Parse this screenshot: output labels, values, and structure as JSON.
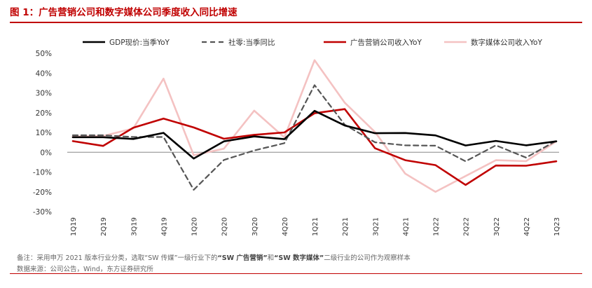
{
  "figure": {
    "title": "图 1：广告营销公司和数字媒体公司季度收入同比增速"
  },
  "chart_data": {
    "type": "line",
    "title": "图 1：广告营销公司和数字媒体公司季度收入同比增速",
    "xlabel": "",
    "ylabel": "",
    "ylim": [
      -30,
      50
    ],
    "ytick_step": 10,
    "ytick_suffix": "%",
    "grid": false,
    "legend_position": "top",
    "categories": [
      "1Q19",
      "2Q19",
      "3Q19",
      "4Q19",
      "1Q20",
      "2Q20",
      "3Q20",
      "4Q20",
      "1Q21",
      "2Q21",
      "3Q21",
      "4Q21",
      "1Q22",
      "2Q22",
      "3Q22",
      "4Q22",
      "1Q23"
    ],
    "series": [
      {
        "name": "GDP现价:当季YoY",
        "color": "#000000",
        "style": "solid",
        "values": [
          7.6,
          7.6,
          6.7,
          9.8,
          -3.2,
          5.5,
          8.0,
          6.6,
          20.9,
          13.5,
          9.6,
          9.7,
          8.5,
          3.4,
          5.7,
          3.5,
          5.5
        ]
      },
      {
        "name": "社零:当季同比",
        "color": "#555555",
        "style": "dashed",
        "values": [
          8.6,
          8.6,
          7.7,
          7.7,
          -19.0,
          -3.9,
          0.9,
          4.6,
          33.9,
          13.9,
          5.0,
          3.5,
          3.3,
          -4.6,
          3.5,
          -2.7,
          5.8
        ]
      },
      {
        "name": "广告营销公司收入YoY",
        "color": "#c00000",
        "style": "solid",
        "values": [
          5.6,
          3.2,
          12.4,
          17.0,
          12.5,
          6.8,
          8.8,
          10.0,
          19.7,
          21.8,
          2.0,
          -4.0,
          -6.5,
          -16.5,
          -6.7,
          -6.8,
          -4.6
        ]
      },
      {
        "name": "数字媒体公司收入YoY",
        "color": "#f4c2c2",
        "style": "solid",
        "values": [
          8.0,
          8.2,
          12.0,
          37.2,
          -1.5,
          1.8,
          21.0,
          7.5,
          46.5,
          25.0,
          10.2,
          -10.8,
          -20.0,
          -12.0,
          -4.0,
          -4.5,
          5.5
        ]
      }
    ]
  },
  "notes": {
    "line1_a": "备注：采用申万 2021 版本行业分类，选取“SW 传媒”一级行业下的",
    "line1_b": "“SW 广告营销”",
    "line1_c": "和",
    "line1_d": "“SW 数字媒体”",
    "line1_e": "二级行业的公司作为观察样本",
    "line2": "数据来源：公司公告，Wind，东方证券研究所"
  }
}
